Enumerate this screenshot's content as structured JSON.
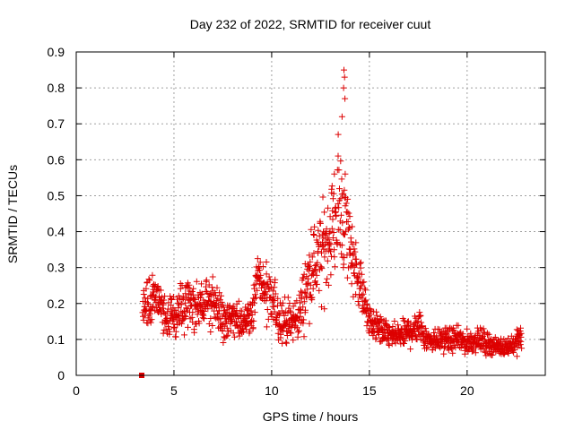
{
  "chart_data": {
    "type": "scatter",
    "title": "Day 232 of 2022, SRMTID for receiver cuut",
    "xlabel": "GPS time / hours",
    "ylabel": "SRMTID / TECUs",
    "xlim": [
      0,
      24
    ],
    "ylim": [
      0,
      0.9
    ],
    "xticks": [
      0,
      5,
      10,
      15,
      20
    ],
    "yticks": [
      0,
      0.1,
      0.2,
      0.3,
      0.4,
      0.5,
      0.6,
      0.7,
      0.8,
      0.9
    ],
    "xtick_labels": [
      "0",
      "5",
      "10",
      "15",
      "20"
    ],
    "ytick_labels": [
      "0",
      "0.1",
      "0.2",
      "0.3",
      "0.4",
      "0.5",
      "0.6",
      "0.7",
      "0.8",
      "0.9"
    ],
    "grid": true,
    "marker": "+",
    "color": "#dd0000",
    "square_marker": {
      "x": 3.35,
      "y": 0.0
    },
    "series_profile": {
      "description": "approximate envelope of the plotted SRMTID points (hours, median, spread)",
      "x": [
        3.4,
        4.0,
        4.5,
        5.0,
        5.5,
        6.0,
        6.5,
        7.0,
        7.5,
        8.0,
        8.5,
        9.0,
        9.3,
        9.7,
        10.0,
        10.5,
        11.0,
        11.5,
        12.0,
        12.5,
        13.0,
        13.5,
        13.8,
        14.2,
        14.6,
        15.0,
        15.5,
        16.0,
        16.5,
        17.0,
        17.5,
        18.0,
        18.5,
        19.0,
        19.5,
        20.0,
        20.5,
        21.0,
        21.5,
        22.0,
        22.5,
        22.8
      ],
      "median": [
        0.19,
        0.22,
        0.17,
        0.16,
        0.19,
        0.2,
        0.19,
        0.22,
        0.15,
        0.16,
        0.14,
        0.18,
        0.28,
        0.22,
        0.2,
        0.16,
        0.14,
        0.18,
        0.3,
        0.32,
        0.4,
        0.48,
        0.42,
        0.32,
        0.24,
        0.15,
        0.13,
        0.11,
        0.11,
        0.12,
        0.14,
        0.1,
        0.1,
        0.1,
        0.1,
        0.09,
        0.1,
        0.09,
        0.08,
        0.08,
        0.09,
        0.11
      ],
      "spread": [
        0.05,
        0.06,
        0.05,
        0.05,
        0.06,
        0.07,
        0.06,
        0.07,
        0.05,
        0.05,
        0.04,
        0.06,
        0.06,
        0.08,
        0.07,
        0.06,
        0.05,
        0.07,
        0.1,
        0.12,
        0.12,
        0.16,
        0.14,
        0.08,
        0.06,
        0.04,
        0.04,
        0.03,
        0.03,
        0.04,
        0.05,
        0.03,
        0.03,
        0.03,
        0.03,
        0.03,
        0.03,
        0.03,
        0.02,
        0.02,
        0.03,
        0.03
      ],
      "peak": {
        "x": 13.7,
        "y": 0.85
      }
    }
  }
}
